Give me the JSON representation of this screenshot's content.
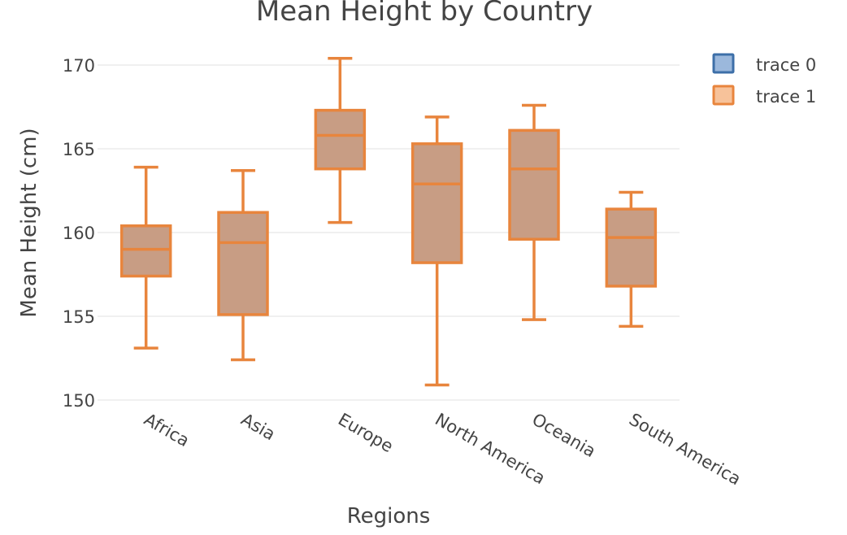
{
  "chart_data": {
    "type": "box",
    "title": "Mean Height by Country",
    "xlabel": "Regions",
    "ylabel": "Mean Height (cm)",
    "ylim": [
      150,
      170
    ],
    "yticks": [
      150,
      155,
      160,
      165,
      170
    ],
    "grid": true,
    "legend_position": "top-right",
    "categories": [
      "Africa",
      "Asia",
      "Europe",
      "North America",
      "Oceania",
      "South America"
    ],
    "series": [
      {
        "name": "trace 0",
        "color": "#3d6fa8",
        "fill": "#9bb8dc",
        "boxes": []
      },
      {
        "name": "trace 1",
        "color": "#e8853d",
        "fill": "#c89d84",
        "legend_fill": "#f7c29a",
        "boxes": [
          {
            "category": "Africa",
            "min": 153.1,
            "q1": 157.4,
            "median": 159.0,
            "q3": 160.4,
            "max": 163.9
          },
          {
            "category": "Asia",
            "min": 152.4,
            "q1": 155.1,
            "median": 159.4,
            "q3": 161.2,
            "max": 163.7
          },
          {
            "category": "Europe",
            "min": 160.6,
            "q1": 163.8,
            "median": 165.8,
            "q3": 167.3,
            "max": 170.4
          },
          {
            "category": "North America",
            "min": 150.9,
            "q1": 158.2,
            "median": 162.9,
            "q3": 165.3,
            "max": 166.9
          },
          {
            "category": "Oceania",
            "min": 154.8,
            "q1": 159.6,
            "median": 163.8,
            "q3": 166.1,
            "max": 167.6
          },
          {
            "category": "South America",
            "min": 154.4,
            "q1": 156.8,
            "median": 159.7,
            "q3": 161.4,
            "max": 162.4
          }
        ]
      }
    ]
  }
}
